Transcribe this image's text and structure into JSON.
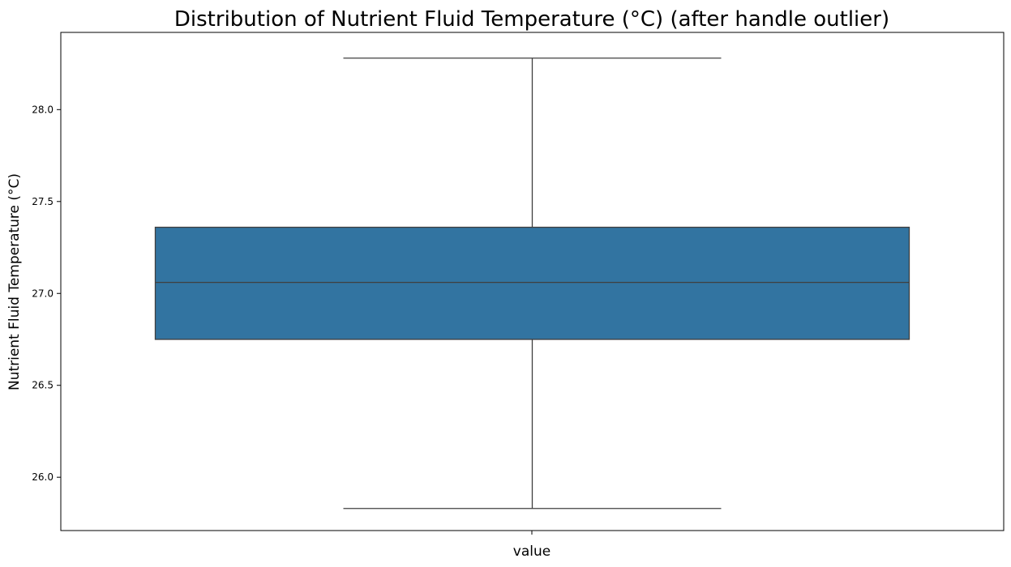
{
  "chart_data": {
    "type": "box",
    "title": "Distribution of Nutrient Fluid Temperature (°C) (after handle outlier)",
    "xlabel": "value",
    "ylabel": "Nutrient Fluid Temperature (°C)",
    "categories": [],
    "ylim": [
      25.71,
      28.42
    ],
    "yticks": [
      26.0,
      26.5,
      27.0,
      27.5,
      28.0
    ],
    "ytick_labels": [
      "26.0",
      "26.5",
      "27.0",
      "27.5",
      "28.0"
    ],
    "grid": false,
    "box": {
      "whisker_low": 25.83,
      "q1": 26.75,
      "median": 27.06,
      "q3": 27.36,
      "whisker_high": 28.28
    },
    "colors": {
      "box_fill": "#3274a1",
      "line": "#3f3f3f",
      "axis": "#000000"
    }
  }
}
